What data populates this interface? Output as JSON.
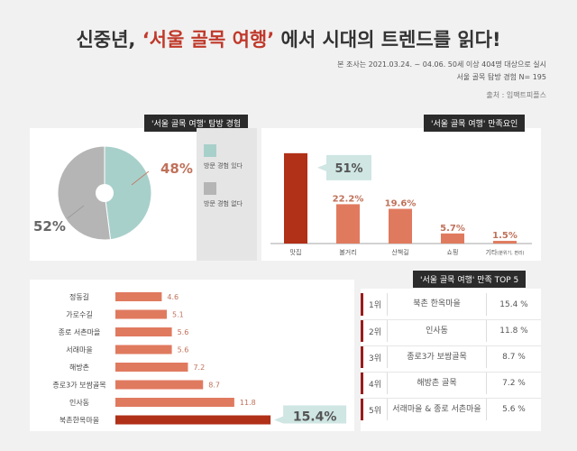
{
  "header": {
    "title_pre": "신중년, ",
    "title_highlight": "‘서울 골목 여행’",
    "title_post": " 에서 시대의 트렌드를 읽다!",
    "survey_line": "본 조사는 2021.03.24. ~ 04.06. 50세 이상 404명 대상으로 실시",
    "sample_line": "서울 골목 탐방 경험 N= 195",
    "source_line": "출처 : 임팩트피플스"
  },
  "colors": {
    "dark_red": "#b03018",
    "salmon": "#e07a5f",
    "teal": "#a8d0cb",
    "grey": "#b5b5b5",
    "label_grey": "#e5e5e5"
  },
  "chart_data": [
    {
      "type": "pie",
      "title": "'서울 골목 여행' 탐방 경험",
      "categories": [
        "방문 경험 있다",
        "방문 경험 없다"
      ],
      "values": [
        48,
        52
      ],
      "value_labels": [
        "48%",
        "52%"
      ],
      "legend_position": "right"
    },
    {
      "type": "bar",
      "title": "'서울 골목 여행' 만족요인",
      "categories": [
        "맛집",
        "볼거리",
        "산책길",
        "쇼핑",
        "기타"
      ],
      "category_notes": [
        "",
        "",
        "",
        "",
        "(분위기, 편리)"
      ],
      "values": [
        51,
        22.2,
        19.6,
        5.7,
        1.5
      ],
      "value_labels": [
        "51%",
        "22.2%",
        "19.6%",
        "5.7%",
        "1.5%"
      ],
      "ylim": [
        0,
        55
      ]
    },
    {
      "type": "bar",
      "orientation": "horizontal",
      "categories": [
        "정동길",
        "가로수길",
        "종로 서촌마을",
        "서래마을",
        "해방촌",
        "종로3가 보쌈골목",
        "인사동",
        "북촌한옥마을"
      ],
      "values": [
        4.6,
        5.1,
        5.6,
        5.6,
        7.2,
        8.7,
        11.8,
        15.4
      ],
      "value_labels": [
        "4.6",
        "5.1",
        "5.6",
        "5.6",
        "7.2",
        "8.7",
        "11.8",
        "15.4%"
      ],
      "xlim": [
        0,
        17
      ]
    },
    {
      "type": "table",
      "title": "'서울 골목 여행' 만족 TOP 5",
      "rows": [
        {
          "rank": "1위",
          "name": "북촌 한옥마을",
          "pct": "15.4 %"
        },
        {
          "rank": "2위",
          "name": "인사동",
          "pct": "11.8 %"
        },
        {
          "rank": "3위",
          "name": "종로3가 보쌈골목",
          "pct": "8.7 %"
        },
        {
          "rank": "4위",
          "name": "해방촌 골목",
          "pct": "7.2 %"
        },
        {
          "rank": "5위",
          "name": "서래마을 & 종로 서촌마을",
          "pct": "5.6 %"
        }
      ]
    }
  ]
}
